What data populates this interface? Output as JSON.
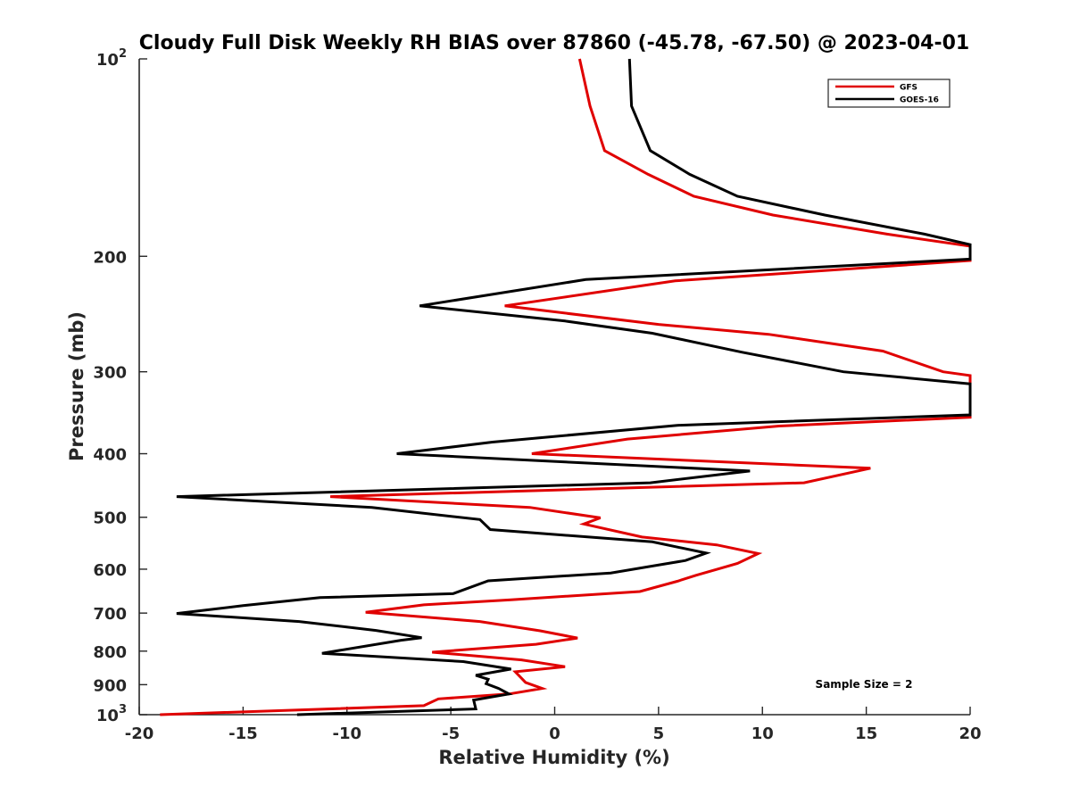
{
  "chart_data": {
    "type": "line",
    "title": "Cloudy Full Disk Weekly RH BIAS over 87860 (-45.78, -67.50) @ 2023-04-01",
    "xlabel": "Relative Humidity (%)",
    "ylabel": "Pressure (mb)",
    "xlim": [
      -20,
      20
    ],
    "ylim": [
      100,
      1000
    ],
    "y_scale": "log",
    "y_reversed": true,
    "x_ticks": [
      "-20",
      "-15",
      "-10",
      "-5",
      "0",
      "5",
      "10",
      "15",
      "20"
    ],
    "y_ticks": [
      {
        "value": 100,
        "label": "10",
        "sup": "2"
      },
      {
        "value": 200,
        "label": "200",
        "sup": ""
      },
      {
        "value": 300,
        "label": "300",
        "sup": ""
      },
      {
        "value": 400,
        "label": "400",
        "sup": ""
      },
      {
        "value": 500,
        "label": "500",
        "sup": ""
      },
      {
        "value": 600,
        "label": "600",
        "sup": ""
      },
      {
        "value": 700,
        "label": "700",
        "sup": ""
      },
      {
        "value": 800,
        "label": "800",
        "sup": ""
      },
      {
        "value": 900,
        "label": "900",
        "sup": ""
      },
      {
        "value": 1000,
        "label": "10",
        "sup": "3"
      }
    ],
    "grid": false,
    "legend_position": "top-right",
    "series": [
      {
        "name": "GFS",
        "color": "#e00000",
        "points": [
          {
            "x": 1.2,
            "y": 100
          },
          {
            "x": 1.7,
            "y": 118
          },
          {
            "x": 2.4,
            "y": 138
          },
          {
            "x": 4.5,
            "y": 150
          },
          {
            "x": 6.7,
            "y": 162
          },
          {
            "x": 10.5,
            "y": 173
          },
          {
            "x": 16.0,
            "y": 185
          },
          {
            "x": 20.0,
            "y": 193
          },
          {
            "x": 20.0,
            "y": 203
          },
          {
            "x": 5.8,
            "y": 218
          },
          {
            "x": -2.4,
            "y": 238
          },
          {
            "x": 5.0,
            "y": 254
          },
          {
            "x": 10.3,
            "y": 263
          },
          {
            "x": 15.8,
            "y": 279
          },
          {
            "x": 18.7,
            "y": 300
          },
          {
            "x": 20.0,
            "y": 304
          },
          {
            "x": 20.0,
            "y": 352
          },
          {
            "x": 10.8,
            "y": 363
          },
          {
            "x": 3.5,
            "y": 380
          },
          {
            "x": -1.1,
            "y": 400
          },
          {
            "x": 15.2,
            "y": 421
          },
          {
            "x": 12.0,
            "y": 443
          },
          {
            "x": -10.8,
            "y": 465
          },
          {
            "x": -1.2,
            "y": 483
          },
          {
            "x": 2.2,
            "y": 501
          },
          {
            "x": 1.4,
            "y": 512
          },
          {
            "x": 4.2,
            "y": 536
          },
          {
            "x": 7.8,
            "y": 551
          },
          {
            "x": 9.8,
            "y": 568
          },
          {
            "x": 8.8,
            "y": 588
          },
          {
            "x": 6.8,
            "y": 613
          },
          {
            "x": 5.9,
            "y": 626
          },
          {
            "x": 4.1,
            "y": 649
          },
          {
            "x": -2.1,
            "y": 668
          },
          {
            "x": -6.3,
            "y": 680
          },
          {
            "x": -9.1,
            "y": 698
          },
          {
            "x": -3.6,
            "y": 721
          },
          {
            "x": -0.7,
            "y": 745
          },
          {
            "x": 1.1,
            "y": 764
          },
          {
            "x": -0.9,
            "y": 781
          },
          {
            "x": -5.9,
            "y": 803
          },
          {
            "x": -1.6,
            "y": 825
          },
          {
            "x": 0.5,
            "y": 845
          },
          {
            "x": -1.9,
            "y": 860
          },
          {
            "x": -1.4,
            "y": 893
          },
          {
            "x": -0.6,
            "y": 912
          },
          {
            "x": -2.2,
            "y": 930
          },
          {
            "x": -5.6,
            "y": 946
          },
          {
            "x": -6.3,
            "y": 969
          },
          {
            "x": -19.0,
            "y": 1000
          }
        ]
      },
      {
        "name": "GOES-16",
        "color": "#000000",
        "points": [
          {
            "x": 3.6,
            "y": 100
          },
          {
            "x": 3.7,
            "y": 118
          },
          {
            "x": 4.6,
            "y": 138
          },
          {
            "x": 6.5,
            "y": 150
          },
          {
            "x": 8.8,
            "y": 162
          },
          {
            "x": 13.0,
            "y": 173
          },
          {
            "x": 17.8,
            "y": 185
          },
          {
            "x": 20.0,
            "y": 192
          },
          {
            "x": 20.0,
            "y": 202
          },
          {
            "x": 1.5,
            "y": 217
          },
          {
            "x": -6.5,
            "y": 238
          },
          {
            "x": 0.5,
            "y": 251
          },
          {
            "x": 4.7,
            "y": 262
          },
          {
            "x": 9.0,
            "y": 280
          },
          {
            "x": 13.9,
            "y": 300
          },
          {
            "x": 20.0,
            "y": 313
          },
          {
            "x": 20.0,
            "y": 349
          },
          {
            "x": 5.9,
            "y": 362
          },
          {
            "x": -3.0,
            "y": 384
          },
          {
            "x": -7.6,
            "y": 400
          },
          {
            "x": 9.4,
            "y": 425
          },
          {
            "x": 4.6,
            "y": 443
          },
          {
            "x": -18.2,
            "y": 465
          },
          {
            "x": -8.8,
            "y": 483
          },
          {
            "x": -3.6,
            "y": 504
          },
          {
            "x": -3.1,
            "y": 522
          },
          {
            "x": 4.7,
            "y": 545
          },
          {
            "x": 7.3,
            "y": 567
          },
          {
            "x": 6.3,
            "y": 582
          },
          {
            "x": 2.7,
            "y": 608
          },
          {
            "x": -3.2,
            "y": 625
          },
          {
            "x": -4.9,
            "y": 654
          },
          {
            "x": -11.3,
            "y": 663
          },
          {
            "x": -15.0,
            "y": 682
          },
          {
            "x": -18.2,
            "y": 701
          },
          {
            "x": -12.3,
            "y": 721
          },
          {
            "x": -8.6,
            "y": 744
          },
          {
            "x": -6.4,
            "y": 763
          },
          {
            "x": -7.4,
            "y": 770
          },
          {
            "x": -11.2,
            "y": 806
          },
          {
            "x": -4.4,
            "y": 830
          },
          {
            "x": -2.1,
            "y": 852
          },
          {
            "x": -3.8,
            "y": 871
          },
          {
            "x": -3.2,
            "y": 883
          },
          {
            "x": -3.3,
            "y": 897
          },
          {
            "x": -2.7,
            "y": 912
          },
          {
            "x": -2.2,
            "y": 930
          },
          {
            "x": -3.9,
            "y": 950
          },
          {
            "x": -3.8,
            "y": 980
          },
          {
            "x": -12.4,
            "y": 1000
          }
        ]
      }
    ],
    "annotations": [
      {
        "text": "Sample Size = 2"
      }
    ]
  }
}
